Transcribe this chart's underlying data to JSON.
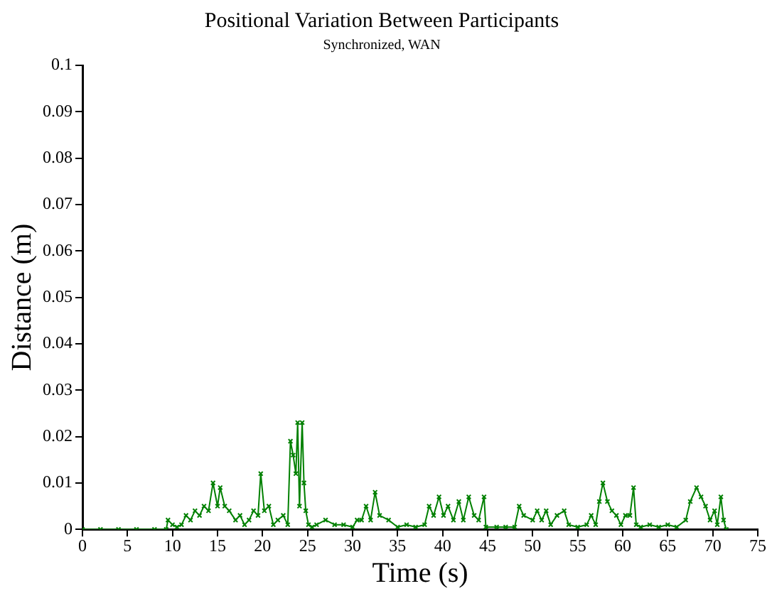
{
  "chart_data": {
    "type": "line",
    "title": "Positional Variation Between Participants",
    "subtitle": "Synchronized, WAN",
    "xlabel": "Time (s)",
    "ylabel": "Distance (m)",
    "xlim": [
      0,
      75
    ],
    "xticks": [
      0,
      5,
      10,
      15,
      20,
      25,
      30,
      35,
      40,
      45,
      50,
      55,
      60,
      65,
      70,
      75
    ],
    "ylim": [
      0,
      0.1
    ],
    "yticks": [
      0,
      0.01,
      0.02,
      0.03,
      0.04,
      0.05,
      0.06,
      0.07,
      0.08,
      0.09,
      0.1
    ],
    "grid": false,
    "legend": false,
    "marker": "cross",
    "line_style": "solid",
    "series": [
      {
        "color": "#008000",
        "x": [
          0,
          2,
          4,
          6,
          8,
          9.3,
          9.5,
          10,
          10.5,
          11,
          11.5,
          12,
          12.5,
          13,
          13.5,
          14,
          14.5,
          15,
          15.3,
          15.8,
          16.3,
          17,
          17.5,
          18,
          18.5,
          19,
          19.5,
          19.8,
          20.2,
          20.7,
          21.2,
          21.7,
          22.3,
          22.8,
          23.1,
          23.4,
          23.7,
          23.9,
          24.1,
          24.4,
          24.6,
          24.8,
          25.1,
          25.5,
          26,
          27,
          28,
          29,
          30,
          30.5,
          31,
          31.5,
          32,
          32.5,
          33,
          34,
          35,
          36,
          37,
          38,
          38.5,
          39,
          39.6,
          40.1,
          40.6,
          41.2,
          41.8,
          42.3,
          42.9,
          43.5,
          44,
          44.6,
          44.8,
          46,
          47,
          48,
          48.5,
          49,
          50,
          50.5,
          51,
          51.5,
          52,
          52.7,
          53.5,
          54,
          55,
          56,
          56.5,
          57,
          57.4,
          57.8,
          58.3,
          58.8,
          59.3,
          59.8,
          60.3,
          60.8,
          61.2,
          61.5,
          62,
          63,
          64,
          65,
          66,
          67,
          67.5,
          68.2,
          68.7,
          69.2,
          69.7,
          70.2,
          70.5,
          70.9,
          71.2,
          71.5
        ],
        "values": [
          0,
          0,
          0,
          0,
          0,
          0,
          0.002,
          0.001,
          0.0005,
          0.001,
          0.003,
          0.002,
          0.004,
          0.003,
          0.005,
          0.004,
          0.01,
          0.005,
          0.009,
          0.005,
          0.004,
          0.002,
          0.003,
          0.001,
          0.002,
          0.004,
          0.003,
          0.012,
          0.004,
          0.005,
          0.001,
          0.002,
          0.003,
          0.001,
          0.019,
          0.016,
          0.012,
          0.023,
          0.005,
          0.023,
          0.01,
          0.004,
          0.001,
          0.0005,
          0.001,
          0.002,
          0.001,
          0.001,
          0.0005,
          0.002,
          0.002,
          0.005,
          0.002,
          0.008,
          0.003,
          0.002,
          0.0005,
          0.001,
          0.0005,
          0.001,
          0.005,
          0.003,
          0.007,
          0.003,
          0.005,
          0.002,
          0.006,
          0.002,
          0.007,
          0.003,
          0.002,
          0.007,
          0.0005,
          0.0005,
          0.0005,
          0.0005,
          0.005,
          0.003,
          0.002,
          0.004,
          0.002,
          0.004,
          0.001,
          0.003,
          0.004,
          0.001,
          0.0005,
          0.001,
          0.003,
          0.001,
          0.006,
          0.01,
          0.006,
          0.004,
          0.003,
          0.001,
          0.003,
          0.003,
          0.009,
          0.001,
          0.0005,
          0.001,
          0.0005,
          0.001,
          0.0005,
          0.002,
          0.006,
          0.009,
          0.007,
          0.005,
          0.002,
          0.004,
          0.001,
          0.007,
          0.002,
          0
        ]
      }
    ]
  }
}
